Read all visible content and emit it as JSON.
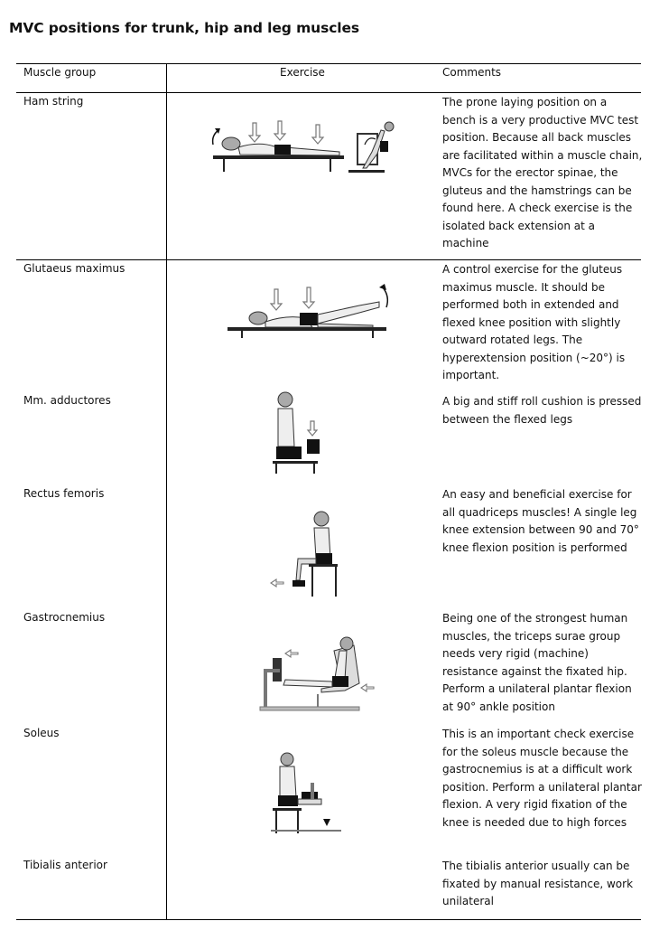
{
  "title": "MVC positions for trunk, hip and leg muscles",
  "table": {
    "headers": {
      "group": "Muscle group",
      "exercise": "Exercise",
      "comments": "Comments"
    },
    "rows": [
      {
        "group": "Ham string",
        "figure": "prone-back-extension-and-machine-icon",
        "comment": "The prone laying position on a bench is a very productive MVC test position. Because all back muscles are facilitated within a muscle chain, MVCs for the erector spinae, the gluteus and the hamstrings can be found here. A check exercise is the isolated back extension at a machine"
      },
      {
        "group": "Glutaeus maximus",
        "figure": "prone-hip-extension-icon",
        "comment": "A control exercise for the gluteus maximus muscle. It should be performed both in extended and flexed knee position with slightly outward rotated legs. The hyperextension position (~20°) is important."
      },
      {
        "group": "Mm. adductores",
        "figure": "seated-adduction-cushion-icon",
        "comment": "A big and stiff roll cushion is pressed between the flexed legs"
      },
      {
        "group": "Rectus femoris",
        "figure": "seated-knee-extension-icon",
        "comment": "An easy and beneficial exercise for all quadriceps muscles! A single leg knee extension between 90 and 70° knee flexion position is performed"
      },
      {
        "group": "Gastrocnemius",
        "figure": "leg-press-plantar-flexion-icon",
        "comment": "Being one of the strongest human muscles, the triceps surae group needs very rigid (machine) resistance against the fixated hip. Perform a unilateral plantar flexion at 90° ankle position"
      },
      {
        "group": "Soleus",
        "figure": "seated-calf-raise-icon",
        "comment": "This is an important check exercise for the soleus muscle because the gastrocnemius is at a difficult work position. Perform a unilateral plantar flexion. A very rigid fixation of the knee is needed due to high forces"
      },
      {
        "group": "Tibialis anterior",
        "figure": "",
        "comment": "The tibialis anterior usually can be fixated by manual resistance, work unilateral"
      }
    ]
  }
}
